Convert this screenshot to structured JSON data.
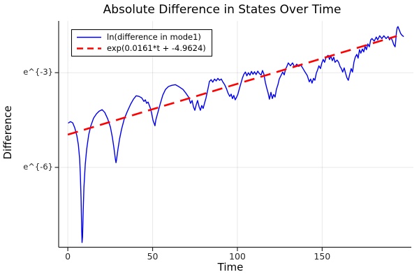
{
  "title": "Absolute Difference in States Over Time",
  "xlabel": "Time",
  "ylabel": "Difference",
  "legend": {
    "items": [
      {
        "label": "ln(difference in mode1)",
        "color": "#0000ee",
        "style": "solid"
      },
      {
        "label": "exp(0.0161*t + -4.9624)",
        "color": "#ff0000",
        "style": "dashed"
      }
    ]
  },
  "axes": {
    "xlim": [
      -5.4,
      203.8
    ],
    "ylim_ln": [
      -8.53,
      -1.36
    ],
    "xticks": [
      {
        "t": 0,
        "label": "0"
      },
      {
        "t": 50,
        "label": "50"
      },
      {
        "t": 100,
        "label": "100"
      },
      {
        "t": 150,
        "label": "150"
      }
    ],
    "yticks": [
      {
        "ln": -3,
        "label": "e^{-3}"
      },
      {
        "ln": -6,
        "label": "e^{-6}"
      }
    ]
  },
  "chart_data": {
    "type": "line",
    "title": "Absolute Difference in States Over Time",
    "xlabel": "Time",
    "ylabel": "Difference",
    "yscale": "log-natural (axis labeled e^{-3}, e^{-6})",
    "grid": true,
    "legend_position": "top-left",
    "xlim": [
      -5.4,
      203.8
    ],
    "ylim_ln": [
      -8.53,
      -1.36
    ],
    "series": [
      {
        "name": "ln(difference in mode1)",
        "color": "#0000ee",
        "style": "solid",
        "points_t_lny": [
          [
            0.4,
            -4.59
          ],
          [
            1.6,
            -4.55
          ],
          [
            2.9,
            -4.59
          ],
          [
            4.1,
            -4.75
          ],
          [
            5.3,
            -4.99
          ],
          [
            6.2,
            -5.28
          ],
          [
            7.0,
            -5.74
          ],
          [
            7.4,
            -6.27
          ],
          [
            7.8,
            -7.0
          ],
          [
            8.2,
            -8.0
          ],
          [
            8.4,
            -8.38
          ],
          [
            8.7,
            -8.2
          ],
          [
            9.1,
            -7.34
          ],
          [
            9.5,
            -6.63
          ],
          [
            10.3,
            -5.9
          ],
          [
            11.1,
            -5.43
          ],
          [
            12.3,
            -4.97
          ],
          [
            13.6,
            -4.68
          ],
          [
            15.2,
            -4.44
          ],
          [
            16.9,
            -4.3
          ],
          [
            18.5,
            -4.22
          ],
          [
            20.2,
            -4.17
          ],
          [
            21.8,
            -4.26
          ],
          [
            23.5,
            -4.46
          ],
          [
            25.1,
            -4.72
          ],
          [
            26.3,
            -5.06
          ],
          [
            27.2,
            -5.39
          ],
          [
            28.0,
            -5.72
          ],
          [
            28.4,
            -5.85
          ],
          [
            28.8,
            -5.74
          ],
          [
            29.6,
            -5.41
          ],
          [
            30.5,
            -5.1
          ],
          [
            31.7,
            -4.79
          ],
          [
            33.3,
            -4.46
          ],
          [
            35.0,
            -4.24
          ],
          [
            37.0,
            -4.0
          ],
          [
            38.7,
            -3.84
          ],
          [
            40.3,
            -3.73
          ],
          [
            42.0,
            -3.75
          ],
          [
            43.6,
            -3.8
          ],
          [
            44.9,
            -3.91
          ],
          [
            45.7,
            -3.86
          ],
          [
            46.5,
            -3.97
          ],
          [
            47.3,
            -3.93
          ],
          [
            48.6,
            -4.11
          ],
          [
            49.4,
            -4.28
          ],
          [
            50.2,
            -4.5
          ],
          [
            51.4,
            -4.68
          ],
          [
            51.9,
            -4.5
          ],
          [
            53.1,
            -4.26
          ],
          [
            54.3,
            -4.02
          ],
          [
            56.0,
            -3.71
          ],
          [
            57.6,
            -3.53
          ],
          [
            59.3,
            -3.44
          ],
          [
            61.3,
            -3.4
          ],
          [
            63.4,
            -3.38
          ],
          [
            65.4,
            -3.44
          ],
          [
            67.9,
            -3.53
          ],
          [
            69.5,
            -3.64
          ],
          [
            71.2,
            -3.77
          ],
          [
            72.4,
            -3.97
          ],
          [
            73.3,
            -3.88
          ],
          [
            74.1,
            -4.08
          ],
          [
            74.9,
            -4.19
          ],
          [
            75.7,
            -4.02
          ],
          [
            76.5,
            -3.88
          ],
          [
            77.4,
            -4.08
          ],
          [
            78.2,
            -4.19
          ],
          [
            79.0,
            -4.04
          ],
          [
            79.8,
            -4.13
          ],
          [
            80.7,
            -3.95
          ],
          [
            81.5,
            -3.8
          ],
          [
            82.7,
            -3.5
          ],
          [
            83.5,
            -3.28
          ],
          [
            84.5,
            -3.22
          ],
          [
            85.5,
            -3.3
          ],
          [
            86.5,
            -3.2
          ],
          [
            87.5,
            -3.26
          ],
          [
            88.5,
            -3.18
          ],
          [
            89.5,
            -3.24
          ],
          [
            90.5,
            -3.2
          ],
          [
            91.5,
            -3.3
          ],
          [
            92.5,
            -3.38
          ],
          [
            93.5,
            -3.5
          ],
          [
            94.5,
            -3.65
          ],
          [
            95.5,
            -3.75
          ],
          [
            96.3,
            -3.68
          ],
          [
            97.1,
            -3.82
          ],
          [
            97.9,
            -3.72
          ],
          [
            98.7,
            -3.86
          ],
          [
            99.5,
            -3.78
          ],
          [
            100.3,
            -3.68
          ],
          [
            101.1,
            -3.52
          ],
          [
            102.0,
            -3.35
          ],
          [
            102.9,
            -3.18
          ],
          [
            103.8,
            -3.05
          ],
          [
            104.7,
            -2.98
          ],
          [
            105.6,
            -3.1
          ],
          [
            106.5,
            -3.0
          ],
          [
            107.4,
            -3.08
          ],
          [
            108.3,
            -2.96
          ],
          [
            109.2,
            -3.05
          ],
          [
            110.1,
            -2.97
          ],
          [
            111.0,
            -3.06
          ],
          [
            112.0,
            -2.95
          ],
          [
            113.0,
            -3.03
          ],
          [
            114.0,
            -3.07
          ],
          [
            114.8,
            -2.93
          ],
          [
            115.6,
            -3.04
          ],
          [
            116.5,
            -3.31
          ],
          [
            117.3,
            -3.49
          ],
          [
            118.1,
            -3.64
          ],
          [
            118.9,
            -3.84
          ],
          [
            119.8,
            -3.62
          ],
          [
            120.6,
            -3.82
          ],
          [
            121.4,
            -3.69
          ],
          [
            122.2,
            -3.77
          ],
          [
            123.0,
            -3.53
          ],
          [
            123.9,
            -3.38
          ],
          [
            124.7,
            -3.2
          ],
          [
            125.5,
            -3.11
          ],
          [
            126.7,
            -2.98
          ],
          [
            127.6,
            -3.07
          ],
          [
            128.4,
            -2.89
          ],
          [
            129.2,
            -2.8
          ],
          [
            130.0,
            -2.69
          ],
          [
            131.3,
            -2.78
          ],
          [
            132.5,
            -2.69
          ],
          [
            133.7,
            -2.82
          ],
          [
            135.0,
            -2.73
          ],
          [
            136.2,
            -2.8
          ],
          [
            137.4,
            -2.76
          ],
          [
            138.7,
            -2.87
          ],
          [
            139.9,
            -2.98
          ],
          [
            141.2,
            -3.09
          ],
          [
            142.4,
            -3.29
          ],
          [
            143.2,
            -3.2
          ],
          [
            144.0,
            -3.33
          ],
          [
            144.9,
            -3.18
          ],
          [
            145.7,
            -3.24
          ],
          [
            146.5,
            -3.02
          ],
          [
            147.3,
            -2.91
          ],
          [
            148.1,
            -2.78
          ],
          [
            149.0,
            -2.87
          ],
          [
            149.8,
            -2.69
          ],
          [
            150.6,
            -2.58
          ],
          [
            151.4,
            -2.67
          ],
          [
            152.3,
            -2.51
          ],
          [
            153.5,
            -2.45
          ],
          [
            154.3,
            -2.58
          ],
          [
            155.1,
            -2.47
          ],
          [
            156.0,
            -2.62
          ],
          [
            156.8,
            -2.51
          ],
          [
            157.6,
            -2.67
          ],
          [
            158.8,
            -2.6
          ],
          [
            159.7,
            -2.67
          ],
          [
            160.5,
            -2.8
          ],
          [
            161.3,
            -2.87
          ],
          [
            162.1,
            -2.98
          ],
          [
            163.0,
            -2.85
          ],
          [
            163.8,
            -3.02
          ],
          [
            164.6,
            -3.16
          ],
          [
            165.4,
            -3.24
          ],
          [
            166.3,
            -3.04
          ],
          [
            167.1,
            -2.87
          ],
          [
            167.9,
            -2.98
          ],
          [
            168.7,
            -2.67
          ],
          [
            169.5,
            -2.51
          ],
          [
            170.4,
            -2.42
          ],
          [
            171.2,
            -2.54
          ],
          [
            172.0,
            -2.27
          ],
          [
            172.8,
            -2.38
          ],
          [
            173.7,
            -2.25
          ],
          [
            174.5,
            -2.34
          ],
          [
            175.3,
            -2.16
          ],
          [
            176.1,
            -2.27
          ],
          [
            176.9,
            -2.09
          ],
          [
            177.8,
            -2.18
          ],
          [
            178.6,
            -1.96
          ],
          [
            179.4,
            -1.92
          ],
          [
            180.7,
            -2.0
          ],
          [
            181.9,
            -1.87
          ],
          [
            182.7,
            -1.96
          ],
          [
            183.9,
            -1.83
          ],
          [
            185.2,
            -1.92
          ],
          [
            186.4,
            -1.83
          ],
          [
            187.7,
            -1.92
          ],
          [
            188.9,
            -1.85
          ],
          [
            189.7,
            -1.96
          ],
          [
            190.5,
            -1.89
          ],
          [
            191.4,
            -1.98
          ],
          [
            192.2,
            -2.11
          ],
          [
            193.0,
            -2.18
          ],
          [
            193.4,
            -1.98
          ],
          [
            193.8,
            -1.72
          ],
          [
            194.2,
            -1.58
          ],
          [
            194.7,
            -1.54
          ],
          [
            195.5,
            -1.65
          ],
          [
            196.3,
            -1.76
          ],
          [
            197.0,
            -1.81
          ],
          [
            197.9,
            -1.85
          ]
        ]
      },
      {
        "name": "exp(0.0161*t + -4.9624)",
        "color": "#ff0000",
        "style": "dashed",
        "fit": {
          "slope": 0.0161,
          "intercept": -4.9624,
          "t_range": [
            0,
            194
          ]
        }
      }
    ]
  }
}
